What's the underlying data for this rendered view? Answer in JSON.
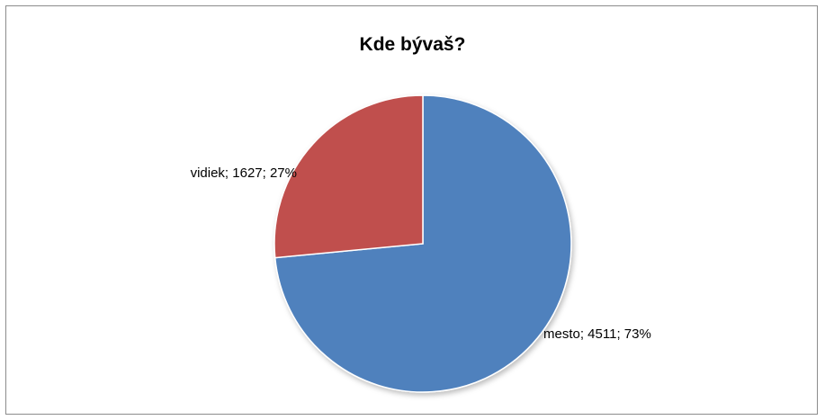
{
  "chart_data": {
    "type": "pie",
    "title": "Kde bývaš?",
    "slices": [
      {
        "label": "mesto",
        "value": 4511,
        "percent": 73,
        "color": "#4f81bd",
        "data_label": "mesto; 4511; 73%"
      },
      {
        "label": "vidiek",
        "value": 1627,
        "percent": 27,
        "color": "#c0504d",
        "data_label": "vidiek; 1627; 27%"
      }
    ],
    "legend": "none"
  }
}
